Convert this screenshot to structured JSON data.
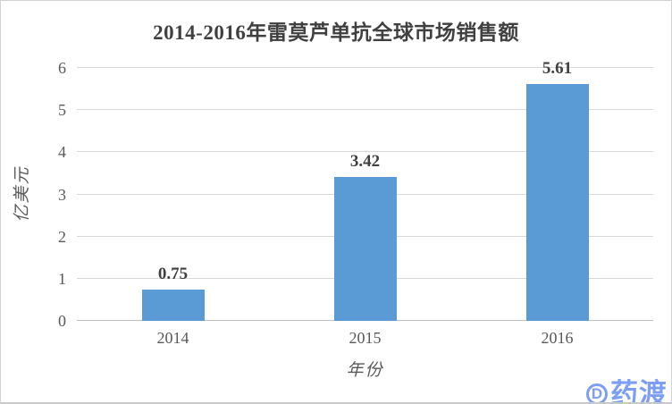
{
  "chart_data": {
    "type": "bar",
    "title": "2014-2016年雷莫芦单抗全球市场销售额",
    "categories": [
      "2014",
      "2015",
      "2016"
    ],
    "values": [
      0.75,
      3.42,
      5.61
    ],
    "value_labels": [
      "0.75",
      "3.42",
      "5.61"
    ],
    "xlabel": "年份",
    "ylabel": "亿美元",
    "ylim": [
      0,
      6
    ],
    "yticks": [
      0,
      1,
      2,
      3,
      4,
      5,
      6
    ],
    "grid": "horizontal",
    "legend_position": "none",
    "bar_color": "#5b9bd5"
  },
  "colors": {
    "bar": "#5b9bd5",
    "gridline": "#d9d9d9",
    "axis_line": "#bfbfbf",
    "title_text": "#404040",
    "tick_text": "#595959",
    "value_label_text": "#404040",
    "logo_blue": "#7d9ff3",
    "background": "#ffffff"
  },
  "logo": {
    "icon": "circle-d-icon",
    "icon_letter": "D",
    "text": "药渡"
  }
}
